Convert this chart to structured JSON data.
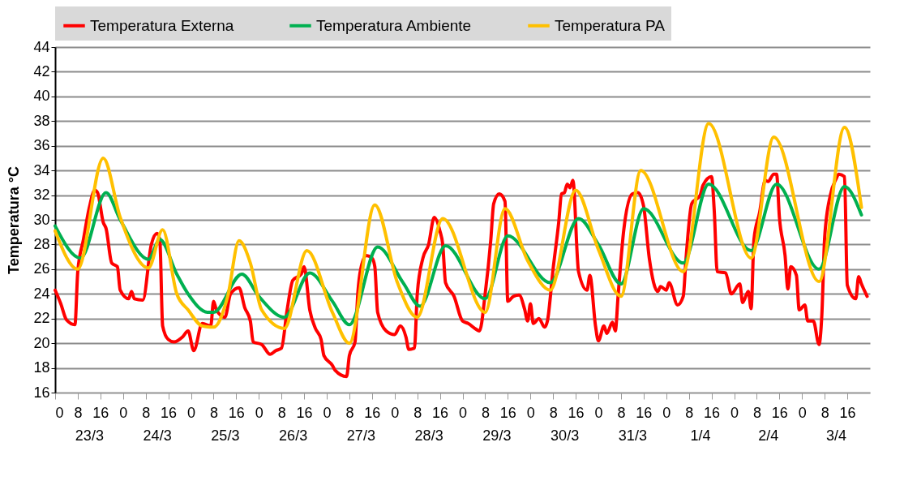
{
  "chart_data": {
    "type": "line",
    "ylabel": "Temperatura °C",
    "xlim": [
      "--03-23T00:00",
      "--04-04T00:00"
    ],
    "ylim": [
      16,
      44
    ],
    "yticks": [
      16,
      18,
      20,
      22,
      24,
      26,
      28,
      30,
      32,
      34,
      36,
      38,
      40,
      42,
      44
    ],
    "xticks": [
      {
        "value": "--03-23T00:00",
        "label": "0"
      },
      {
        "value": "--03-23T08:00",
        "label": "8"
      },
      {
        "value": "--03-23T16:00",
        "label": "16"
      },
      {
        "value": "--03-24T00:00",
        "label": "0"
      },
      {
        "value": "--03-24T08:00",
        "label": "8"
      },
      {
        "value": "--03-24T16:00",
        "label": "16"
      },
      {
        "value": "--03-25T00:00",
        "label": "0"
      },
      {
        "value": "--03-25T08:00",
        "label": "8"
      },
      {
        "value": "--03-25T16:00",
        "label": "16"
      },
      {
        "value": "--03-26T00:00",
        "label": "0"
      },
      {
        "value": "--03-26T08:00",
        "label": "8"
      },
      {
        "value": "--03-26T16:00",
        "label": "16"
      },
      {
        "value": "--03-27T00:00",
        "label": "0"
      },
      {
        "value": "--03-27T08:00",
        "label": "8"
      },
      {
        "value": "--03-27T16:00",
        "label": "16"
      },
      {
        "value": "--03-28T00:00",
        "label": "0"
      },
      {
        "value": "--03-28T08:00",
        "label": "8"
      },
      {
        "value": "--03-28T16:00",
        "label": "16"
      },
      {
        "value": "--03-29T00:00",
        "label": "0"
      },
      {
        "value": "--03-29T08:00",
        "label": "8"
      },
      {
        "value": "--03-29T16:00",
        "label": "16"
      },
      {
        "value": "--03-30T00:00",
        "label": "0"
      },
      {
        "value": "--03-30T08:00",
        "label": "8"
      },
      {
        "value": "--03-30T16:00",
        "label": "16"
      },
      {
        "value": "--03-31T00:00",
        "label": "0"
      },
      {
        "value": "--03-31T08:00",
        "label": "8"
      },
      {
        "value": "--03-31T16:00",
        "label": "16"
      },
      {
        "value": "--04-01T00:00",
        "label": "0"
      },
      {
        "value": "--04-01T08:00",
        "label": "8"
      },
      {
        "value": "--04-01T16:00",
        "label": "16"
      },
      {
        "value": "--04-02T00:00",
        "label": "0"
      },
      {
        "value": "--04-02T08:00",
        "label": "8"
      },
      {
        "value": "--04-02T16:00",
        "label": "16"
      },
      {
        "value": "--04-03T00:00",
        "label": "0"
      },
      {
        "value": "--04-03T08:00",
        "label": "8"
      },
      {
        "value": "--04-03T16:00",
        "label": "16"
      }
    ],
    "x2lim": [
      "--03-23T00:00",
      "--04-04T00:00"
    ],
    "x2ticks": [
      {
        "value": "--03-23T12:00",
        "label": "23/3"
      },
      {
        "value": "--03-24T12:00",
        "label": "24/3"
      },
      {
        "value": "--03-25T12:00",
        "label": "25/3"
      },
      {
        "value": "--03-26T12:00",
        "label": "26/3"
      },
      {
        "value": "--03-27T12:00",
        "label": "27/3"
      },
      {
        "value": "--03-28T12:00",
        "label": "28/3"
      },
      {
        "value": "--03-29T12:00",
        "label": "29/3"
      },
      {
        "value": "--03-30T12:00",
        "label": "30/3"
      },
      {
        "value": "--03-31T12:00",
        "label": "31/3"
      },
      {
        "value": "--04-01T12:00",
        "label": "1/4"
      },
      {
        "value": "--04-02T12:00",
        "label": "2/4"
      },
      {
        "value": "--04-03T12:00",
        "label": "3/4"
      }
    ],
    "grid": "y",
    "legend": "top",
    "line_style": "solid",
    "series": [
      {
        "name": "Temperatura Externa",
        "color": "#ff0000",
        "x": [
          "--03-23T00:00",
          "--03-23T02:00",
          "--03-23T04:00",
          "--03-23T07:00",
          "--03-23T08:00",
          "--03-23T10:00",
          "--03-23T12:00",
          "--03-23T14:00",
          "--03-23T15:00",
          "--03-23T17:00",
          "--03-23T18:00",
          "--03-23T20:00",
          "--03-23T22:00",
          "--03-23T23:00",
          "--03-24T02:00",
          "--03-24T03:00",
          "--03-24T04:00",
          "--03-24T07:00",
          "--03-24T10:00",
          "--03-24T12:00",
          "--03-24T13:00",
          "--03-24T14:00",
          "--03-24T16:00",
          "--03-24T18:00",
          "--03-24T21:00",
          "--03-24T23:00",
          "--03-25T01:00",
          "--03-25T04:00",
          "--03-25T07:00",
          "--03-25T08:00",
          "--03-25T09:00",
          "--03-25T12:00",
          "--03-25T14:00",
          "--03-25T17:00",
          "--03-25T19:00",
          "--03-25T21:00",
          "--03-25T22:00",
          "--03-26T01:00",
          "--03-26T04:00",
          "--03-26T06:00",
          "--03-26T08:00",
          "--03-26T10:00",
          "--03-26T12:00",
          "--03-26T15:00",
          "--03-26T16:00",
          "--03-26T18:00",
          "--03-26T20:00",
          "--03-26T22:00",
          "--03-26T23:00",
          "--03-27T02:00",
          "--03-27T03:00",
          "--03-27T07:00",
          "--03-27T08:00",
          "--03-27T10:00",
          "--03-27T11:00",
          "--03-27T12:00",
          "--03-27T14:00",
          "--03-27T16:00",
          "--03-27T17:00",
          "--03-27T18:00",
          "--03-27T21:00",
          "--03-28T00:00",
          "--03-28T02:00",
          "--03-28T04:00",
          "--03-28T05:00",
          "--03-28T07:00",
          "--03-28T08:00",
          "--03-28T10:00",
          "--03-28T12:00",
          "--03-28T14:00",
          "--03-28T16:00",
          "--03-28T17:00",
          "--03-28T18:00",
          "--03-28T21:00",
          "--03-29T00:00",
          "--03-29T02:00",
          "--03-29T05:00",
          "--03-29T06:00",
          "--03-29T08:00",
          "--03-29T10:00",
          "--03-29T11:00",
          "--03-29T13:00",
          "--03-29T15:00",
          "--03-29T16:00",
          "--03-29T18:00",
          "--03-29T20:00",
          "--03-29T22:00",
          "--03-29T23:00",
          "--03-30T00:00",
          "--03-30T01:00",
          "--03-30T03:00",
          "--03-30T05:00",
          "--03-30T06:00",
          "--03-30T08:00",
          "--03-30T10:00",
          "--03-30T11:00",
          "--03-30T12:00",
          "--03-30T13:00",
          "--03-30T14:00",
          "--03-30T15:00",
          "--03-30T17:00",
          "--03-30T20:00",
          "--03-30T21:00",
          "--03-30T23:00",
          "--03-31T00:00",
          "--03-31T02:00",
          "--03-31T03:00",
          "--03-31T05:00",
          "--03-31T06:00",
          "--03-31T07:00",
          "--03-31T09:00",
          "--03-31T12:00",
          "--03-31T14:00",
          "--03-31T16:00",
          "--03-31T18:00",
          "--03-31T21:00",
          "--03-31T22:00",
          "--04-01T00:00",
          "--04-01T01:00",
          "--04-01T04:00",
          "--04-01T06:00",
          "--04-01T07:00",
          "--04-01T09:00",
          "--04-01T12:00",
          "--04-01T13:00",
          "--04-01T16:00",
          "--04-01T17:00",
          "--04-01T18:00",
          "--04-01T21:00",
          "--04-01T23:00",
          "--04-02T02:00",
          "--04-02T03:00",
          "--04-02T05:00",
          "--04-02T06:00",
          "--04-02T07:00",
          "--04-02T09:00",
          "--04-02T11:00",
          "--04-02T12:00",
          "--04-02T14:00",
          "--04-02T15:00",
          "--04-02T16:00",
          "--04-02T18:00",
          "--04-02T19:00",
          "--04-02T20:00",
          "--04-02T22:00",
          "--04-02T23:00",
          "--04-03T01:00",
          "--04-03T02:00",
          "--04-03T04:00",
          "--04-03T06:00",
          "--04-03T07:00",
          "--04-03T08:00",
          "--04-03T10:00",
          "--04-03T12:00",
          "--04-03T13:00",
          "--04-03T15:00",
          "--04-03T16:00",
          "--04-03T19:00",
          "--04-03T20:00",
          "--04-03T21:00",
          "--04-03T23:00"
        ],
        "values": [
          24.3,
          23.2,
          21.9,
          21.5,
          25.8,
          28.4,
          30.9,
          32.4,
          32.2,
          29.8,
          29.3,
          26.5,
          26.2,
          24.3,
          23.6,
          24.2,
          23.6,
          23.5,
          28.0,
          28.9,
          28.4,
          21.4,
          20.3,
          20.1,
          20.5,
          21.0,
          19.4,
          21.6,
          21.4,
          23.4,
          22.7,
          22.1,
          24.0,
          24.5,
          22.9,
          21.8,
          20.1,
          19.9,
          19.1,
          19.4,
          19.6,
          22.7,
          25.1,
          25.6,
          26.2,
          22.7,
          21.2,
          20.3,
          19.0,
          18.2,
          17.8,
          17.3,
          19.0,
          20.1,
          24.1,
          26.0,
          27.1,
          26.9,
          26.2,
          22.5,
          21.0,
          20.7,
          21.4,
          20.5,
          19.5,
          19.6,
          24.0,
          26.9,
          28.0,
          30.2,
          29.1,
          28.0,
          24.9,
          23.8,
          21.8,
          21.6,
          21.1,
          21.0,
          24.0,
          28.4,
          31.3,
          32.1,
          31.5,
          23.4,
          23.8,
          23.9,
          22.7,
          21.8,
          23.2,
          21.6,
          22.0,
          21.3,
          21.8,
          26.0,
          29.8,
          32.1,
          32.2,
          32.9,
          32.6,
          33.2,
          25.8,
          24.3,
          25.5,
          21.4,
          20.2,
          21.4,
          20.8,
          21.7,
          21.0,
          23.9,
          29.2,
          32.1,
          32.2,
          31.1,
          26.9,
          24.2,
          24.6,
          24.3,
          24.9,
          23.1,
          23.8,
          26.9,
          31.3,
          32.0,
          32.8,
          33.5,
          30.6,
          25.8,
          25.7,
          24.0,
          24.8,
          23.3,
          24.2,
          22.8,
          28.4,
          30.6,
          33.2,
          33.1,
          33.7,
          33.7,
          30.2,
          27.1,
          24.4,
          26.2,
          25.5,
          22.7,
          23.1,
          21.8,
          21.8,
          19.9,
          22.3,
          28.6,
          32.0,
          33.3,
          33.7,
          33.5,
          24.7,
          23.6,
          25.4,
          24.8,
          23.8
        ]
      },
      {
        "name": "Temperatura Ambiente",
        "color": "#00b050",
        "x": [
          "--03-23T00:00",
          "--03-23T09:00",
          "--03-23T18:00",
          "--03-23T23:00",
          "--03-24T09:00",
          "--03-24T13:00",
          "--03-24T19:00",
          "--03-24T23:00",
          "--03-25T06:00",
          "--03-25T08:00",
          "--03-25T18:00",
          "--03-26T00:00",
          "--03-26T09:00",
          "--03-26T18:00",
          "--03-27T02:00",
          "--03-27T08:00",
          "--03-27T18:00",
          "--03-28T03:00",
          "--03-28T09:00",
          "--03-28T18:00",
          "--03-29T08:00",
          "--03-29T16:00",
          "--03-30T07:00",
          "--03-30T17:00",
          "--03-31T00:00",
          "--03-31T08:00",
          "--03-31T16:00",
          "--04-01T06:00",
          "--04-01T15:00",
          "--04-02T06:00",
          "--04-02T15:00",
          "--04-03T06:00",
          "--04-03T15:00",
          "--04-03T21:00"
        ],
        "values": [
          29.5,
          26.9,
          32.2,
          30.0,
          26.8,
          28.4,
          25.6,
          24.0,
          22.5,
          22.5,
          25.6,
          23.8,
          22.1,
          25.7,
          23.4,
          21.5,
          27.8,
          24.9,
          23.0,
          27.9,
          23.6,
          28.7,
          24.9,
          30.1,
          28.0,
          24.8,
          30.9,
          26.5,
          32.9,
          27.5,
          32.9,
          26.0,
          32.7,
          30.4
        ]
      },
      {
        "name": "Temperatura PA",
        "color": "#ffc000",
        "x": [
          "--03-23T00:00",
          "--03-23T08:00",
          "--03-23T17:00",
          "--03-23T23:00",
          "--03-24T09:00",
          "--03-24T14:00",
          "--03-24T19:00",
          "--03-24T23:00",
          "--03-25T04:00",
          "--03-25T08:00",
          "--03-25T13:00",
          "--03-25T17:00",
          "--03-25T21:00",
          "--03-26T01:00",
          "--03-26T09:00",
          "--03-26T17:00",
          "--03-27T02:00",
          "--03-27T08:00",
          "--03-27T17:00",
          "--03-28T01:00",
          "--03-28T08:00",
          "--03-28T17:00",
          "--03-29T08:00",
          "--03-29T15:00",
          "--03-29T23:00",
          "--03-30T07:00",
          "--03-30T16:00",
          "--03-31T00:00",
          "--03-31T08:00",
          "--03-31T15:00",
          "--04-01T06:00",
          "--04-01T15:00",
          "--04-02T06:00",
          "--04-02T14:00",
          "--04-03T06:00",
          "--04-03T15:00",
          "--04-03T21:00"
        ],
        "values": [
          29.1,
          26.0,
          35.0,
          30.2,
          26.1,
          29.2,
          24.0,
          22.7,
          21.4,
          21.3,
          23.8,
          28.3,
          26.5,
          22.7,
          21.2,
          27.5,
          22.5,
          20.0,
          31.2,
          24.9,
          22.1,
          30.1,
          22.5,
          30.9,
          26.7,
          24.3,
          32.4,
          27.6,
          23.8,
          34.0,
          25.8,
          37.8,
          26.9,
          36.7,
          25.0,
          37.5,
          31.0
        ]
      }
    ]
  }
}
